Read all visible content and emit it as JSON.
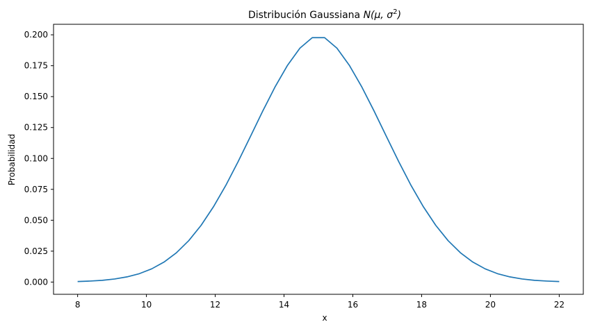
{
  "chart_data": {
    "type": "line",
    "title_text": "Distribución Gaussiana ",
    "title_math_prefix": "N(μ, σ",
    "title_math_sup": "2",
    "title_math_suffix": ")",
    "xlabel": "x",
    "ylabel": "Probabilidad",
    "xlim": [
      7.3,
      22.7
    ],
    "ylim": [
      -0.0099,
      0.2085
    ],
    "xticks": [
      8,
      10,
      12,
      14,
      16,
      18,
      20,
      22
    ],
    "xtick_labels": [
      "8",
      "10",
      "12",
      "14",
      "16",
      "18",
      "20",
      "22"
    ],
    "yticks": [
      0.0,
      0.025,
      0.05,
      0.075,
      0.1,
      0.125,
      0.15,
      0.175,
      0.2
    ],
    "ytick_labels": [
      "0.000",
      "0.025",
      "0.050",
      "0.075",
      "0.100",
      "0.125",
      "0.150",
      "0.175",
      "0.200"
    ],
    "grid": false,
    "series": [
      {
        "color": "#1f77b4",
        "x": [
          8.0,
          8.359,
          8.718,
          9.077,
          9.436,
          9.795,
          10.154,
          10.513,
          10.872,
          11.231,
          11.59,
          11.949,
          12.308,
          12.667,
          13.026,
          13.385,
          13.744,
          14.103,
          14.462,
          14.821,
          15.179,
          15.538,
          15.897,
          16.256,
          16.615,
          16.974,
          17.333,
          17.692,
          18.051,
          18.41,
          18.769,
          19.128,
          19.487,
          19.846,
          20.205,
          20.564,
          20.923,
          21.282,
          21.641,
          22.0
        ],
        "y": [
          0.0004,
          0.0008,
          0.0014,
          0.0025,
          0.0042,
          0.0068,
          0.0107,
          0.0162,
          0.0237,
          0.0335,
          0.0459,
          0.0609,
          0.0782,
          0.0975,
          0.1179,
          0.1385,
          0.1581,
          0.1754,
          0.1892,
          0.1977,
          0.1977,
          0.1892,
          0.1754,
          0.1581,
          0.1385,
          0.1179,
          0.0975,
          0.0782,
          0.0609,
          0.0459,
          0.0335,
          0.0237,
          0.0162,
          0.0107,
          0.0068,
          0.0042,
          0.0025,
          0.0014,
          0.0008,
          0.0004
        ]
      }
    ]
  }
}
